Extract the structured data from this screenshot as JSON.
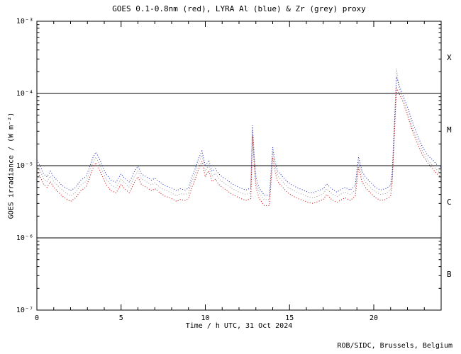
{
  "credit": "ROB/SIDC, Brussels, Belgium",
  "chart_data": {
    "type": "line",
    "title": "GOES 0.1-0.8nm (red), LYRA Al (blue) & Zr (grey) proxy",
    "xlabel": "Time / h UTC, 31 Oct 2024",
    "ylabel": "GOES irradiance / (W m⁻²)",
    "xlim": [
      0,
      24
    ],
    "ylog_range": [
      -7,
      -3
    ],
    "grid": false,
    "legend": "encoded in title colors",
    "x_major_ticks": [
      0,
      5,
      10,
      15,
      20
    ],
    "y_tick_exponents": [
      -7,
      -6,
      -5,
      -4,
      -3
    ],
    "y_tick_labels": [
      "10⁻⁷",
      "10⁻⁶",
      "10⁻⁵",
      "10⁻⁴",
      "10⁻³"
    ],
    "class_boundaries": [
      1e-06,
      1e-05,
      0.0001
    ],
    "flare_classes": [
      {
        "label": "X",
        "log_center": -3.5
      },
      {
        "label": "M",
        "log_center": -4.5
      },
      {
        "label": "C",
        "log_center": -5.5
      },
      {
        "label": "B",
        "log_center": -6.5
      }
    ],
    "x": [
      0,
      0.2,
      0.4,
      0.6,
      0.8,
      1,
      1.2,
      1.5,
      1.8,
      2,
      2.3,
      2.6,
      2.9,
      3.1,
      3.3,
      3.5,
      3.7,
      3.9,
      4.1,
      4.4,
      4.7,
      5,
      5.2,
      5.5,
      5.8,
      6,
      6.2,
      6.5,
      6.8,
      7,
      7.3,
      7.6,
      8,
      8.3,
      8.5,
      8.8,
      9,
      9.2,
      9.4,
      9.6,
      9.8,
      10,
      10.2,
      10.4,
      10.6,
      10.8,
      11,
      11.3,
      11.6,
      12,
      12.4,
      12.7,
      12.8,
      12.9,
      13,
      13.2,
      13.5,
      13.8,
      14,
      14.15,
      14.3,
      14.6,
      14.9,
      15.2,
      15.5,
      15.8,
      16.1,
      16.4,
      16.7,
      17,
      17.2,
      17.5,
      17.8,
      18,
      18.3,
      18.6,
      18.9,
      19.1,
      19.3,
      19.5,
      19.8,
      20.1,
      20.4,
      20.7,
      21,
      21.1,
      21.2,
      21.35,
      21.5,
      21.7,
      22,
      22.3,
      22.6,
      22.9,
      23.2,
      23.5,
      23.8,
      24
    ],
    "series": [
      {
        "name": "LYRA Zr proxy",
        "color": "#9e9e9e",
        "values": [
          1e-05,
          8.4e-06,
          6.6e-06,
          6e-06,
          7.2e-06,
          6e-06,
          5.4e-06,
          4.6e-06,
          4.1e-06,
          3.8e-06,
          4.3e-06,
          5.4e-06,
          6e-06,
          7.8e-06,
          1.08e-05,
          1.32e-05,
          1.08e-05,
          8.4e-06,
          6.6e-06,
          5.4e-06,
          5e-06,
          6.6e-06,
          5.8e-06,
          5e-06,
          7.2e-06,
          8.4e-06,
          6.6e-06,
          6e-06,
          5.4e-06,
          5.8e-06,
          5e-06,
          4.6e-06,
          4.2e-06,
          3.8e-06,
          4.1e-06,
          4e-06,
          4.2e-06,
          6e-06,
          7.8e-06,
          1.08e-05,
          1.38e-05,
          8.4e-06,
          1.02e-05,
          7.2e-06,
          7.8e-06,
          6.6e-06,
          6e-06,
          5.4e-06,
          4.8e-06,
          4.3e-06,
          4e-06,
          4.2e-06,
          3.1e-05,
          1.2e-05,
          6e-06,
          4.2e-06,
          3.4e-06,
          3.4e-06,
          1.56e-05,
          9.6e-06,
          7.2e-06,
          6e-06,
          5e-06,
          4.6e-06,
          4.2e-06,
          4e-06,
          3.7e-06,
          3.6e-06,
          3.8e-06,
          4.1e-06,
          4.8e-06,
          4.1e-06,
          3.7e-06,
          4e-06,
          4.3e-06,
          4e-06,
          4.6e-06,
          1.14e-05,
          7.2e-06,
          6e-06,
          5e-06,
          4.3e-06,
          4e-06,
          4.1e-06,
          4.6e-06,
          7.2e-06,
          2.4e-05,
          0.00022,
          0.00012,
          9e-05,
          5.5e-05,
          3.4e-05,
          2.2e-05,
          1.6e-05,
          1.2e-05,
          1e-05,
          8.5e-06,
          8e-06
        ]
      },
      {
        "name": "LYRA Al proxy",
        "color": "#2a35c0",
        "values": [
          1.2e-05,
          9.8e-06,
          7.7e-06,
          7e-06,
          8.4e-06,
          7e-06,
          6.3e-06,
          5.3e-06,
          4.8e-06,
          4.5e-06,
          5e-06,
          6.3e-06,
          7e-06,
          9.1e-06,
          1.26e-05,
          1.54e-05,
          1.26e-05,
          9.8e-06,
          7.7e-06,
          6.3e-06,
          5.9e-06,
          7.7e-06,
          6.7e-06,
          5.9e-06,
          8.4e-06,
          9.8e-06,
          7.7e-06,
          7e-06,
          6.3e-06,
          6.7e-06,
          5.9e-06,
          5.3e-06,
          4.9e-06,
          4.5e-06,
          4.8e-06,
          4.6e-06,
          4.9e-06,
          7e-06,
          9.1e-06,
          1.26e-05,
          1.6e-05,
          9.8e-06,
          1.19e-05,
          8.4e-06,
          9.1e-06,
          7.7e-06,
          7e-06,
          6.3e-06,
          5.6e-06,
          5e-06,
          4.6e-06,
          4.9e-06,
          3.6e-05,
          1.4e-05,
          7e-06,
          4.9e-06,
          3.9e-06,
          3.9e-06,
          1.8e-05,
          1.1e-05,
          8.4e-06,
          7e-06,
          5.9e-06,
          5.3e-06,
          4.9e-06,
          4.6e-06,
          4.3e-06,
          4.2e-06,
          4.5e-06,
          4.8e-06,
          5.6e-06,
          4.8e-06,
          4.3e-06,
          4.6e-06,
          5e-06,
          4.6e-06,
          5.3e-06,
          1.33e-05,
          8.4e-06,
          7e-06,
          5.9e-06,
          5e-06,
          4.6e-06,
          4.8e-06,
          5.3e-06,
          8.4e-06,
          2.8e-05,
          0.00017,
          0.00013,
          0.0001,
          6.5e-05,
          4e-05,
          2.6e-05,
          1.8e-05,
          1.4e-05,
          1.2e-05,
          1e-05,
          9.5e-06
        ]
      },
      {
        "name": "GOES 0.1-0.8nm",
        "color": "#cc1111",
        "values": [
          8.5e-06,
          7e-06,
          5.5e-06,
          5e-06,
          6e-06,
          5e-06,
          4.5e-06,
          3.8e-06,
          3.4e-06,
          3.2e-06,
          3.6e-06,
          4.5e-06,
          5e-06,
          6.5e-06,
          9e-06,
          1.1e-05,
          9e-06,
          7e-06,
          5.5e-06,
          4.5e-06,
          4.2e-06,
          5.5e-06,
          4.8e-06,
          4.2e-06,
          6e-06,
          7e-06,
          5.5e-06,
          5e-06,
          4.5e-06,
          4.8e-06,
          4.2e-06,
          3.8e-06,
          3.5e-06,
          3.2e-06,
          3.4e-06,
          3.3e-06,
          3.5e-06,
          5e-06,
          6.5e-06,
          9e-06,
          1.15e-05,
          7e-06,
          8.5e-06,
          6e-06,
          6.5e-06,
          5.5e-06,
          5e-06,
          4.5e-06,
          4e-06,
          3.6e-06,
          3.3e-06,
          3.5e-06,
          2.6e-05,
          1e-05,
          5e-06,
          3.5e-06,
          2.8e-06,
          2.8e-06,
          1.3e-05,
          8e-06,
          6e-06,
          5e-06,
          4.2e-06,
          3.8e-06,
          3.5e-06,
          3.3e-06,
          3.1e-06,
          3e-06,
          3.2e-06,
          3.4e-06,
          4e-06,
          3.4e-06,
          3.1e-06,
          3.3e-06,
          3.6e-06,
          3.3e-06,
          3.8e-06,
          9.5e-06,
          6e-06,
          5e-06,
          4.2e-06,
          3.6e-06,
          3.3e-06,
          3.4e-06,
          3.8e-06,
          6e-06,
          2e-05,
          0.00012,
          0.0001,
          8e-05,
          5e-05,
          3e-05,
          2e-05,
          1.4e-05,
          1.1e-05,
          9e-06,
          7.5e-06,
          7e-06
        ]
      }
    ]
  }
}
